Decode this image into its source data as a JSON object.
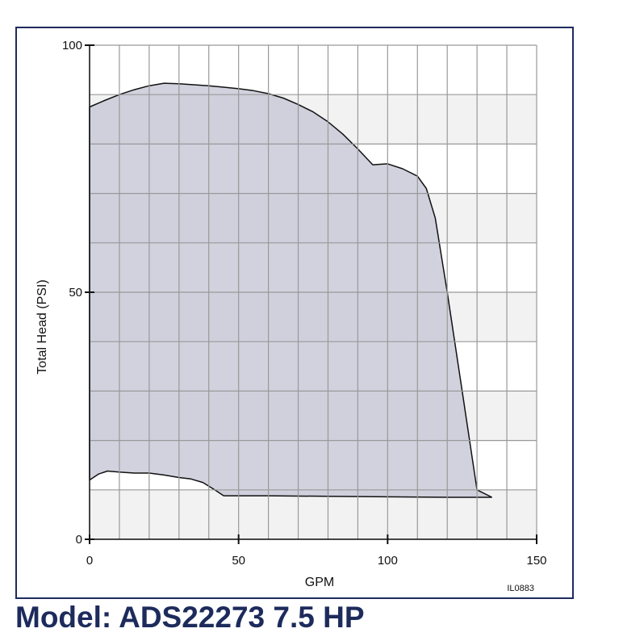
{
  "model_title": "Model: ADS22273 7.5 HP",
  "figure_code": "IL0883",
  "colors": {
    "frame": "#1d2b5c",
    "title": "#1d2b5c",
    "grid": "#999999",
    "band": "#f2f2f2",
    "area_fill": "#c9cad8",
    "curve": "#111111"
  },
  "chart_data": {
    "type": "area",
    "title": "",
    "xlabel": "GPM",
    "ylabel": "Total Head (PSI)",
    "xlim": [
      0,
      150
    ],
    "ylim": [
      0,
      100
    ],
    "x_ticks": [
      0,
      50,
      100,
      150
    ],
    "y_ticks": [
      0,
      50,
      100
    ],
    "x_tick_labels": [
      "0",
      "50",
      "100",
      "150"
    ],
    "y_tick_labels": [
      "0",
      "50",
      "100"
    ],
    "grid": true,
    "grid_x_step": 10,
    "grid_y_step": 10,
    "upper_curve": {
      "x": [
        0,
        5,
        10,
        15,
        20,
        25,
        30,
        35,
        40,
        45,
        50,
        55,
        60,
        65,
        70,
        75,
        80,
        85,
        90,
        95,
        100,
        105,
        110,
        113,
        116,
        120,
        125,
        130,
        135
      ],
      "y": [
        87.5,
        88.8,
        90.0,
        91.0,
        91.8,
        92.3,
        92.2,
        92.0,
        91.8,
        91.5,
        91.2,
        90.8,
        90.2,
        89.3,
        88.0,
        86.5,
        84.5,
        82.0,
        79.0,
        75.8,
        76.0,
        75.0,
        73.5,
        71.0,
        65.0,
        50.0,
        30.0,
        10.0,
        8.5
      ]
    },
    "lower_curve": {
      "x": [
        0,
        3,
        6,
        10,
        15,
        20,
        25,
        30,
        34,
        38,
        42,
        45,
        60,
        80,
        100,
        120,
        135
      ],
      "y": [
        12.0,
        13.2,
        13.8,
        13.6,
        13.4,
        13.4,
        13.0,
        12.5,
        12.2,
        11.5,
        10.0,
        8.8,
        8.8,
        8.7,
        8.6,
        8.5,
        8.5
      ]
    }
  }
}
